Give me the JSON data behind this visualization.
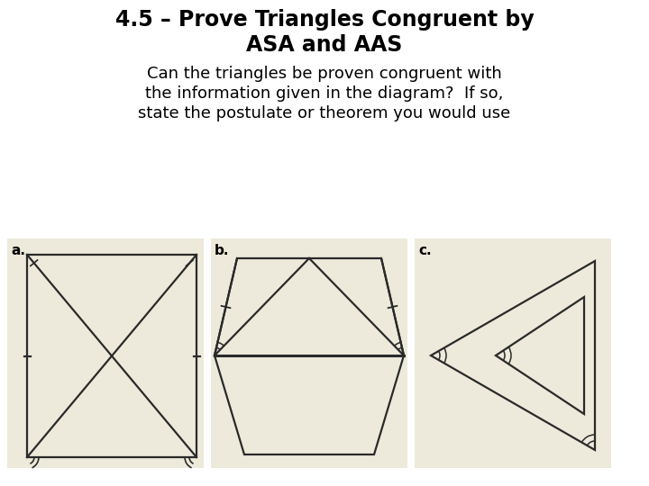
{
  "title_line1": "4.5 – Prove Triangles Congruent by",
  "title_line2": "ASA and AAS",
  "subtitle_line1": "Can the triangles be proven congruent with",
  "subtitle_line2": "the information given in the diagram?  If so,",
  "subtitle_line3": "state the postulate or theorem you would use",
  "bg_color": "#ffffff",
  "panel_bg": "#edeadb",
  "line_color": "#2a2a2a",
  "label_a": "a.",
  "label_b": "b.",
  "label_c": "c.",
  "title_fontsize": 17,
  "subtitle_fontsize": 13,
  "label_fontsize": 11
}
